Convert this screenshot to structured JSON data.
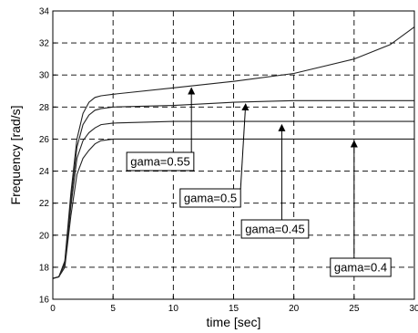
{
  "chart_data": {
    "type": "line",
    "xlabel": "time [sec]",
    "ylabel": "Frequency [rad/s]",
    "xlim": [
      0,
      30
    ],
    "ylim": [
      16,
      34
    ],
    "grid": true,
    "grid_style": "dashed",
    "x_ticks": [
      "0",
      "5",
      "10",
      "15",
      "20",
      "25",
      "30"
    ],
    "y_ticks": [
      "16",
      "18",
      "20",
      "22",
      "24",
      "26",
      "28",
      "30",
      "32",
      "34"
    ],
    "series": [
      {
        "name": "gama=0.55",
        "x": [
          0,
          0.5,
          1.0,
          1.5,
          2.0,
          2.5,
          3.0,
          3.5,
          4.0,
          5,
          10,
          15,
          20,
          25,
          28,
          30
        ],
        "y": [
          17.3,
          17.4,
          18.4,
          22.6,
          26.0,
          27.6,
          28.3,
          28.6,
          28.7,
          28.8,
          29.2,
          29.6,
          30.1,
          31.0,
          31.9,
          33.0
        ]
      },
      {
        "name": "gama=0.5",
        "x": [
          0,
          0.5,
          1.0,
          1.5,
          2.0,
          2.5,
          3.0,
          3.5,
          4.0,
          5,
          10,
          15,
          20,
          25,
          30
        ],
        "y": [
          17.3,
          17.4,
          18.3,
          22.2,
          25.5,
          26.9,
          27.5,
          27.8,
          27.9,
          28.0,
          28.1,
          28.3,
          28.4,
          28.4,
          28.4
        ]
      },
      {
        "name": "gama=0.45",
        "x": [
          0,
          0.5,
          1.0,
          1.5,
          2.0,
          2.5,
          3.0,
          3.5,
          4.0,
          5,
          10,
          15,
          20,
          25,
          30
        ],
        "y": [
          17.3,
          17.4,
          18.2,
          21.8,
          24.8,
          25.9,
          26.4,
          26.7,
          26.9,
          27.0,
          27.1,
          27.1,
          27.1,
          27.1,
          27.1
        ]
      },
      {
        "name": "gama=0.4",
        "x": [
          0,
          0.5,
          1.0,
          1.5,
          2.0,
          2.5,
          3.0,
          3.5,
          4.0,
          5,
          10,
          15,
          20,
          25,
          30
        ],
        "y": [
          17.3,
          17.4,
          18.0,
          21.2,
          23.8,
          24.8,
          25.3,
          25.7,
          25.9,
          26.0,
          26.0,
          26.0,
          26.0,
          26.0,
          26.0
        ]
      }
    ],
    "annotations": [
      {
        "text": "gama=0.55",
        "series": 0,
        "arrow_to": [
          11.5,
          29.3
        ]
      },
      {
        "text": "gama=0.5",
        "series": 1,
        "arrow_to": [
          16.0,
          28.3
        ]
      },
      {
        "text": "gama=0.45",
        "series": 2,
        "arrow_to": [
          19.0,
          27.0
        ]
      },
      {
        "text": "gama=0.4",
        "series": 3,
        "arrow_to": [
          25.0,
          26.0
        ]
      }
    ]
  }
}
